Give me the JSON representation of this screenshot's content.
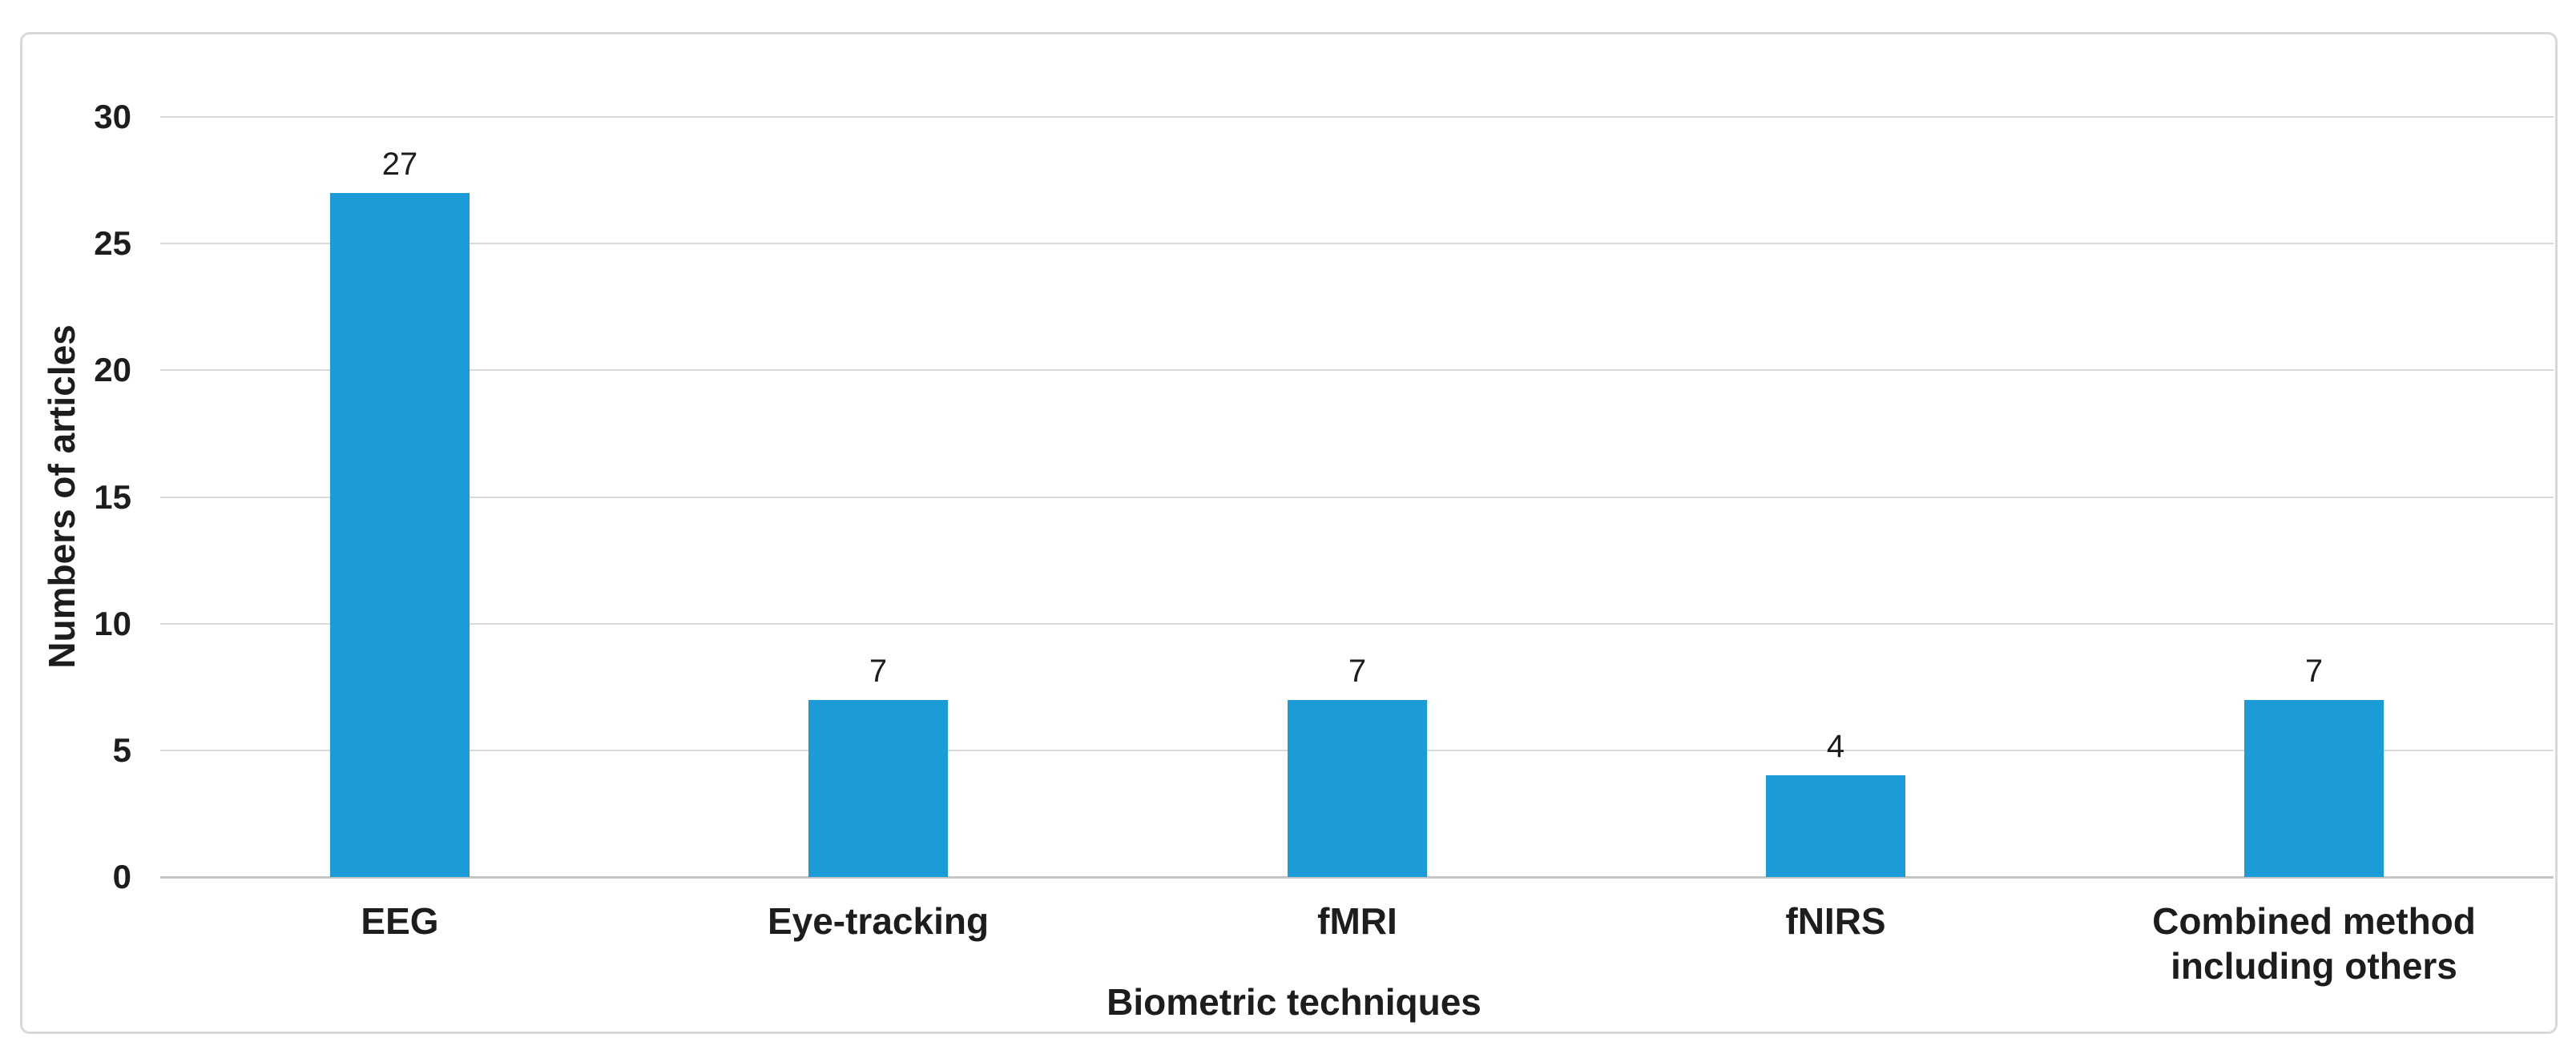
{
  "chart_data": {
    "type": "bar",
    "title": "",
    "categories": [
      "EEG",
      "Eye-tracking",
      "fMRI",
      "fNIRS",
      "Combined method including others"
    ],
    "values": [
      27,
      7,
      7,
      4,
      7
    ],
    "data_labels": [
      "27",
      "7",
      "7",
      "4",
      "7"
    ],
    "xlabel": "Biometric techniques",
    "ylabel": "Numbers of articles",
    "ylim": [
      0,
      30
    ],
    "yticks": [
      0,
      5,
      10,
      15,
      20,
      25,
      30
    ],
    "grid": "horizontal",
    "legend": "none",
    "bar_color": "#1B9CD9",
    "gridline_color": "#D9D9D9",
    "axis_line_color": "#C6C6C6",
    "border_color": "#D9D9D9",
    "text_color": "#1D1D1D"
  }
}
